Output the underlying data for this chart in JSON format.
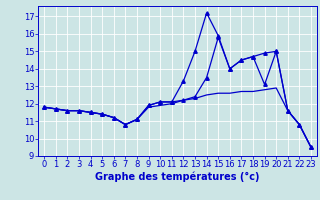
{
  "background_color": "#cce5e5",
  "grid_color": "#ffffff",
  "line_color": "#0000cc",
  "xlabel": "Graphe des températures (°c)",
  "xlabel_fontsize": 7,
  "tick_fontsize": 6,
  "ylim": [
    9,
    17.6
  ],
  "xlim": [
    -0.5,
    23.5
  ],
  "yticks": [
    9,
    10,
    11,
    12,
    13,
    14,
    15,
    16,
    17
  ],
  "xticks": [
    0,
    1,
    2,
    3,
    4,
    5,
    6,
    7,
    8,
    9,
    10,
    11,
    12,
    13,
    14,
    15,
    16,
    17,
    18,
    19,
    20,
    21,
    22,
    23
  ],
  "series": [
    {
      "x": [
        0,
        1,
        2,
        3,
        4,
        5,
        6,
        7,
        8,
        9,
        10,
        11,
        12,
        13,
        14,
        15,
        16,
        17,
        18,
        19,
        20,
        21,
        22,
        23
      ],
      "y": [
        11.8,
        11.7,
        11.6,
        11.6,
        11.5,
        11.4,
        11.2,
        10.8,
        11.1,
        11.9,
        12.1,
        12.1,
        13.3,
        15.0,
        17.2,
        15.9,
        14.0,
        14.5,
        14.7,
        14.9,
        15.0,
        11.6,
        10.8,
        9.5
      ],
      "marker": "^",
      "markersize": 2.5,
      "linewidth": 0.9
    },
    {
      "x": [
        0,
        1,
        2,
        3,
        4,
        5,
        6,
        7,
        8,
        9,
        10,
        11,
        12,
        13,
        14,
        15,
        16,
        17,
        18,
        19,
        20,
        21,
        22,
        23
      ],
      "y": [
        11.8,
        11.7,
        11.6,
        11.6,
        11.5,
        11.4,
        11.2,
        10.8,
        11.1,
        11.8,
        11.9,
        12.0,
        12.2,
        12.3,
        12.5,
        12.6,
        12.6,
        12.7,
        12.7,
        12.8,
        12.9,
        11.6,
        10.8,
        9.5
      ],
      "marker": null,
      "markersize": 0,
      "linewidth": 0.9
    },
    {
      "x": [
        0,
        1,
        2,
        3,
        4,
        5,
        6,
        7,
        8,
        9,
        10,
        11,
        12,
        13,
        14,
        15,
        16,
        17,
        18,
        19,
        20,
        21,
        22,
        23
      ],
      "y": [
        11.8,
        11.7,
        11.6,
        11.6,
        11.5,
        11.4,
        11.2,
        10.8,
        11.1,
        11.9,
        12.1,
        12.1,
        12.2,
        12.4,
        13.5,
        15.8,
        14.0,
        14.5,
        14.7,
        13.1,
        15.0,
        11.6,
        10.8,
        9.5
      ],
      "marker": "^",
      "markersize": 2.5,
      "linewidth": 0.9
    }
  ],
  "figwidth": 3.2,
  "figheight": 2.0,
  "dpi": 100
}
